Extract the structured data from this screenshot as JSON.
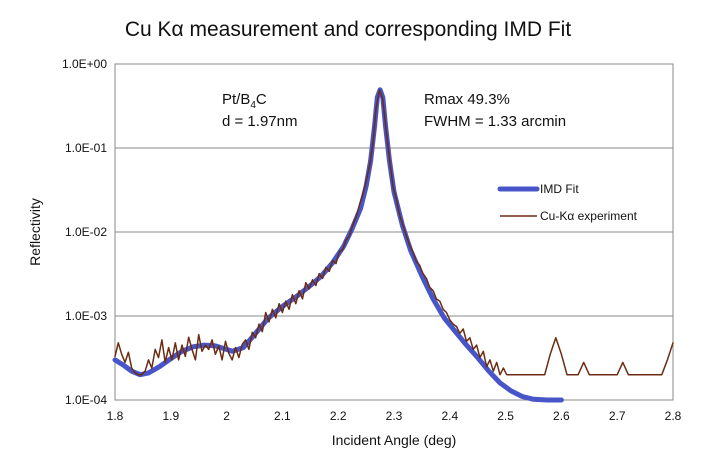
{
  "chart_data": {
    "type": "line",
    "title": "Cu Kα measurement and corresponding IMD Fit",
    "xlabel": "Incident Angle (deg)",
    "ylabel": "Reflectivity",
    "xlim": [
      1.8,
      2.8
    ],
    "ylim": [
      0.0001,
      1.0
    ],
    "y_scale": "log",
    "grid": true,
    "x_ticks": [
      "1.8",
      "1.9",
      "2",
      "2.1",
      "2.2",
      "2.3",
      "2.4",
      "2.5",
      "2.6",
      "2.7",
      "2.8"
    ],
    "y_ticks": [
      "1.0E-04",
      "1.0E-03",
      "1.0E-02",
      "1.0E-01",
      "1.0E+00"
    ],
    "legend_position": "right",
    "annotations": {
      "material_prefix": "Pt/B",
      "material_sub": "4",
      "material_suffix": "C",
      "period": "d = 1.97nm",
      "rmax": "Rmax 49.3%",
      "fwhm": "FWHM = 1.33 arcmin"
    },
    "series": [
      {
        "name": "IMD Fit",
        "color": "#4755c8",
        "points": [
          [
            1.8,
            0.0003
          ],
          [
            1.815,
            0.00026
          ],
          [
            1.83,
            0.00022
          ],
          [
            1.845,
            0.0002
          ],
          [
            1.86,
            0.00021
          ],
          [
            1.88,
            0.00025
          ],
          [
            1.9,
            0.00031
          ],
          [
            1.92,
            0.00038
          ],
          [
            1.94,
            0.00043
          ],
          [
            1.96,
            0.00045
          ],
          [
            1.98,
            0.00044
          ],
          [
            2.0,
            0.0004
          ],
          [
            2.01,
            0.00038
          ],
          [
            2.03,
            0.00042
          ],
          [
            2.05,
            0.0006
          ],
          [
            2.075,
            0.00095
          ],
          [
            2.1,
            0.0013
          ],
          [
            2.125,
            0.0017
          ],
          [
            2.15,
            0.0023
          ],
          [
            2.17,
            0.003
          ],
          [
            2.19,
            0.0043
          ],
          [
            2.21,
            0.0068
          ],
          [
            2.225,
            0.011
          ],
          [
            2.24,
            0.019
          ],
          [
            2.25,
            0.035
          ],
          [
            2.258,
            0.07
          ],
          [
            2.265,
            0.18
          ],
          [
            2.27,
            0.4
          ],
          [
            2.275,
            0.493
          ],
          [
            2.28,
            0.4
          ],
          [
            2.285,
            0.18
          ],
          [
            2.292,
            0.07
          ],
          [
            2.3,
            0.03
          ],
          [
            2.315,
            0.012
          ],
          [
            2.33,
            0.006
          ],
          [
            2.35,
            0.003
          ],
          [
            2.37,
            0.0016
          ],
          [
            2.39,
            0.00095
          ],
          [
            2.41,
            0.00065
          ],
          [
            2.43,
            0.00045
          ],
          [
            2.45,
            0.00032
          ],
          [
            2.47,
            0.00022
          ],
          [
            2.49,
            0.00016
          ],
          [
            2.51,
            0.000128
          ],
          [
            2.53,
            0.00011
          ],
          [
            2.55,
            0.000102
          ],
          [
            2.575,
            0.0001
          ],
          [
            2.6,
            0.0001
          ]
        ]
      },
      {
        "name": "Cu-Kα experiment",
        "color": "#6b2c12",
        "points": [
          [
            1.8,
            0.00033
          ],
          [
            1.806,
            0.00048
          ],
          [
            1.812,
            0.00035
          ],
          [
            1.818,
            0.00028
          ],
          [
            1.824,
            0.00037
          ],
          [
            1.83,
            0.00024
          ],
          [
            1.836,
            0.00021
          ],
          [
            1.842,
            0.0002
          ],
          [
            1.848,
            0.0002
          ],
          [
            1.854,
            0.00022
          ],
          [
            1.86,
            0.0003
          ],
          [
            1.866,
            0.00024
          ],
          [
            1.872,
            0.0004
          ],
          [
            1.878,
            0.00032
          ],
          [
            1.884,
            0.00052
          ],
          [
            1.89,
            0.00028
          ],
          [
            1.896,
            0.00042
          ],
          [
            1.902,
            0.0003
          ],
          [
            1.908,
            0.00048
          ],
          [
            1.914,
            0.0003
          ],
          [
            1.92,
            0.00045
          ],
          [
            1.926,
            0.00033
          ],
          [
            1.932,
            0.00056
          ],
          [
            1.938,
            0.0004
          ],
          [
            1.944,
            0.0003
          ],
          [
            1.95,
            0.0006
          ],
          [
            1.956,
            0.00038
          ],
          [
            1.962,
            0.00045
          ],
          [
            1.968,
            0.0004
          ],
          [
            1.974,
            0.00052
          ],
          [
            1.98,
            0.00035
          ],
          [
            1.986,
            0.00044
          ],
          [
            1.992,
            0.0003
          ],
          [
            1.998,
            0.0005
          ],
          [
            2.004,
            0.00036
          ],
          [
            2.01,
            0.0003
          ],
          [
            2.016,
            0.00042
          ],
          [
            2.022,
            0.00032
          ],
          [
            2.028,
            0.00046
          ],
          [
            2.034,
            0.00052
          ],
          [
            2.04,
            0.0004
          ],
          [
            2.046,
            0.00064
          ],
          [
            2.052,
            0.00055
          ],
          [
            2.058,
            0.0008
          ],
          [
            2.064,
            0.00065
          ],
          [
            2.07,
            0.0011
          ],
          [
            2.076,
            0.00085
          ],
          [
            2.082,
            0.0012
          ],
          [
            2.088,
            0.00095
          ],
          [
            2.094,
            0.0014
          ],
          [
            2.1,
            0.0011
          ],
          [
            2.106,
            0.0015
          ],
          [
            2.112,
            0.0012
          ],
          [
            2.118,
            0.0018
          ],
          [
            2.124,
            0.0014
          ],
          [
            2.13,
            0.002
          ],
          [
            2.136,
            0.0016
          ],
          [
            2.142,
            0.0025
          ],
          [
            2.148,
            0.0021
          ],
          [
            2.154,
            0.0027
          ],
          [
            2.16,
            0.0023
          ],
          [
            2.166,
            0.0032
          ],
          [
            2.172,
            0.0028
          ],
          [
            2.178,
            0.0038
          ],
          [
            2.184,
            0.0034
          ],
          [
            2.19,
            0.0046
          ],
          [
            2.196,
            0.0042
          ],
          [
            2.202,
            0.0058
          ],
          [
            2.208,
            0.0062
          ],
          [
            2.214,
            0.008
          ],
          [
            2.22,
            0.009
          ],
          [
            2.226,
            0.012
          ],
          [
            2.232,
            0.015
          ],
          [
            2.238,
            0.021
          ],
          [
            2.244,
            0.028
          ],
          [
            2.25,
            0.04
          ],
          [
            2.256,
            0.06
          ],
          [
            2.262,
            0.11
          ],
          [
            2.268,
            0.3
          ],
          [
            2.274,
            0.49
          ],
          [
            2.28,
            0.38
          ],
          [
            2.286,
            0.16
          ],
          [
            2.292,
            0.075
          ],
          [
            2.298,
            0.035
          ],
          [
            2.304,
            0.025
          ],
          [
            2.31,
            0.016
          ],
          [
            2.316,
            0.012
          ],
          [
            2.322,
            0.009
          ],
          [
            2.328,
            0.007
          ],
          [
            2.334,
            0.0058
          ],
          [
            2.34,
            0.0045
          ],
          [
            2.346,
            0.004
          ],
          [
            2.352,
            0.0032
          ],
          [
            2.358,
            0.0028
          ],
          [
            2.364,
            0.0022
          ],
          [
            2.37,
            0.002
          ],
          [
            2.376,
            0.0016
          ],
          [
            2.382,
            0.0015
          ],
          [
            2.388,
            0.0012
          ],
          [
            2.394,
            0.0011
          ],
          [
            2.4,
            0.0009
          ],
          [
            2.406,
            0.0008
          ],
          [
            2.412,
            0.00075
          ],
          [
            2.418,
            0.00062
          ],
          [
            2.424,
            0.0007
          ],
          [
            2.43,
            0.0005
          ],
          [
            2.436,
            0.00055
          ],
          [
            2.442,
            0.0004
          ],
          [
            2.448,
            0.00045
          ],
          [
            2.454,
            0.00032
          ],
          [
            2.46,
            0.00038
          ],
          [
            2.466,
            0.00025
          ],
          [
            2.472,
            0.0003
          ],
          [
            2.478,
            0.00022
          ],
          [
            2.484,
            0.00028
          ],
          [
            2.49,
            0.0002
          ],
          [
            2.496,
            0.00024
          ],
          [
            2.502,
            0.0002
          ],
          [
            2.52,
            0.0002
          ],
          [
            2.54,
            0.0002
          ],
          [
            2.56,
            0.0002
          ],
          [
            2.57,
            0.0002
          ],
          [
            2.58,
            0.00035
          ],
          [
            2.59,
            0.00055
          ],
          [
            2.6,
            0.00035
          ],
          [
            2.61,
            0.0002
          ],
          [
            2.63,
            0.0002
          ],
          [
            2.64,
            0.00028
          ],
          [
            2.65,
            0.0002
          ],
          [
            2.67,
            0.0002
          ],
          [
            2.69,
            0.0002
          ],
          [
            2.7,
            0.0002
          ],
          [
            2.71,
            0.00028
          ],
          [
            2.72,
            0.0002
          ],
          [
            2.75,
            0.0002
          ],
          [
            2.78,
            0.0002
          ],
          [
            2.79,
            0.0003
          ],
          [
            2.8,
            0.00048
          ]
        ]
      }
    ]
  }
}
